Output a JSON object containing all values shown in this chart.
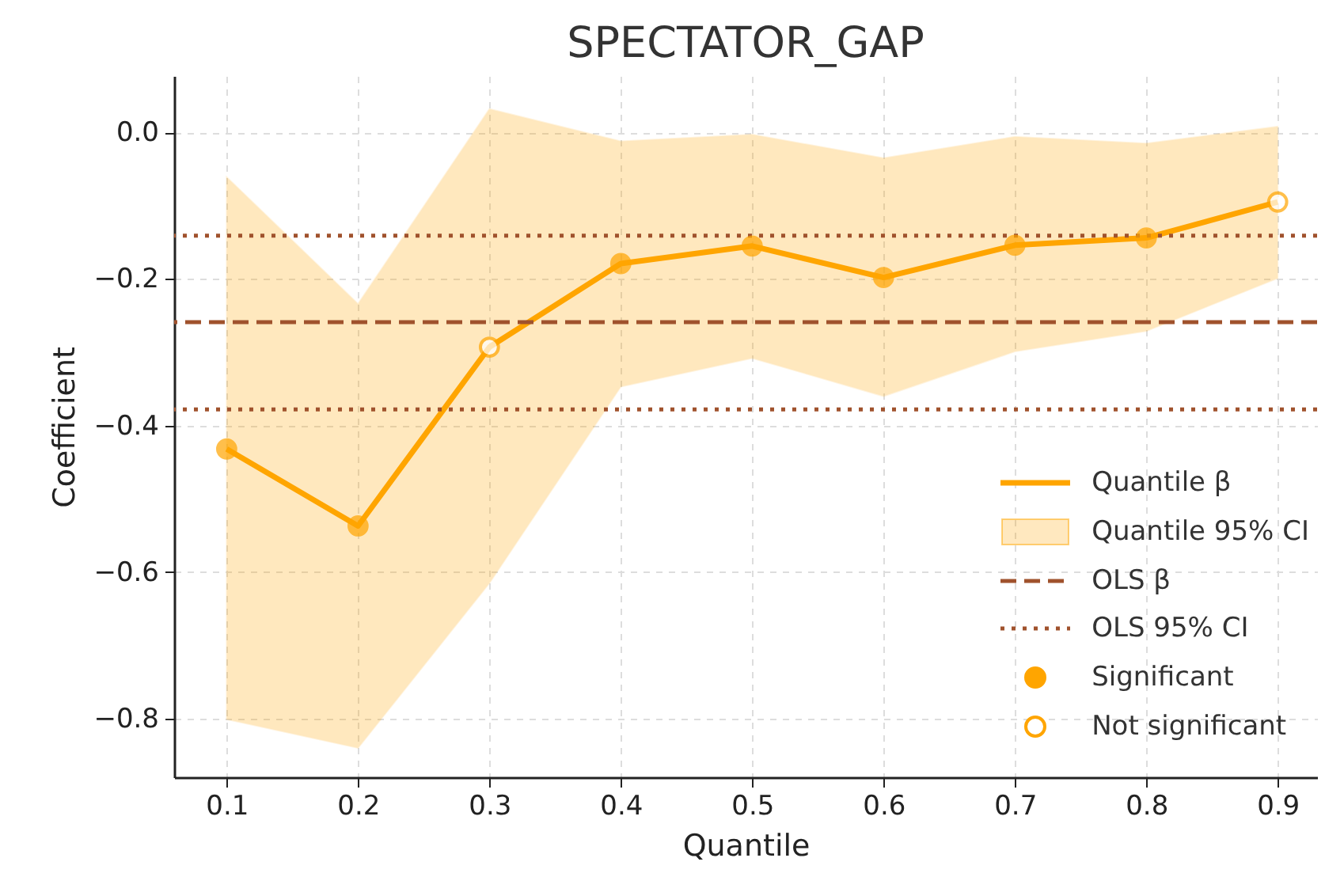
{
  "chart_data": {
    "type": "line",
    "title": "SPECTATOR_GAP",
    "xlabel": "Quantile",
    "ylabel": "Coefficient",
    "xlim": [
      0.06,
      0.93
    ],
    "ylim": [
      -0.88,
      0.077
    ],
    "xticks": [
      0.1,
      0.2,
      0.3,
      0.4,
      0.5,
      0.6,
      0.7,
      0.8,
      0.9
    ],
    "yticks": [
      {
        "value": -0.8,
        "label": "−0.8"
      },
      {
        "value": -0.6,
        "label": "−0.6"
      },
      {
        "value": -0.4,
        "label": "−0.4"
      },
      {
        "value": -0.2,
        "label": "−0.2"
      },
      {
        "value": 0,
        "label": "0.0"
      }
    ],
    "grid": true,
    "legend": "bottom right",
    "annotations": [
      "Quantile 95% CI"
    ],
    "series": [
      {
        "name": "Quantile β",
        "color": "#ffa500",
        "x": [
          0.1,
          0.2,
          0.3,
          0.4,
          0.5,
          0.6,
          0.7,
          0.8,
          0.9
        ],
        "values": [
          -0.432,
          -0.537,
          -0.293,
          -0.179,
          -0.155,
          -0.198,
          -0.154,
          -0.144,
          -0.095
        ],
        "lower": [
          -0.801,
          -0.84,
          -0.615,
          -0.347,
          -0.308,
          -0.36,
          -0.299,
          -0.271,
          -0.199
        ],
        "upper": [
          -0.061,
          -0.234,
          0.032,
          -0.012,
          -0.003,
          -0.035,
          -0.006,
          -0.015,
          0.008
        ]
      },
      {
        "name": "Significant",
        "type": "scatter",
        "marker": "circle",
        "color": "#ffa500",
        "x": [
          0.1,
          0.2,
          0.4,
          0.5,
          0.6,
          0.7,
          0.8
        ],
        "values": [
          -0.432,
          -0.537,
          -0.179,
          -0.155,
          -0.198,
          -0.154,
          -0.144
        ]
      },
      {
        "name": "Not significant",
        "type": "scatter",
        "marker": "circle",
        "color": "#ffa500",
        "colors": [
          "#ffffff",
          "#ffffff"
        ],
        "x": [
          0.3,
          0.9
        ],
        "values": [
          -0.293,
          -0.095
        ]
      }
    ],
    "ref_lines": [
      {
        "axis": "y",
        "value": -0.259,
        "label": "OLS β",
        "color": "#a0522d",
        "line_style": "dashed"
      },
      {
        "axis": "y",
        "value": -0.141,
        "label": "OLS 95% CI",
        "color": "#a0522d",
        "line_style": "dotted"
      },
      {
        "axis": "y",
        "value": -0.378,
        "color": "#a0522d",
        "line_style": "dotted"
      }
    ]
  }
}
